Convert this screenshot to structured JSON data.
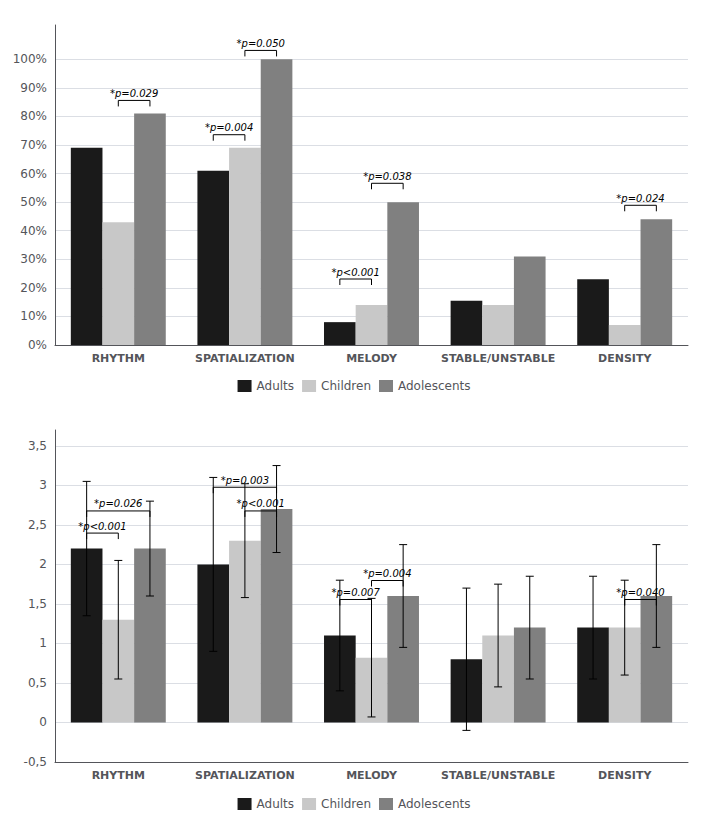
{
  "chart_data": [
    {
      "type": "bar",
      "categories": [
        "RHYTHM",
        "SPATIALIZATION",
        "MELODY",
        "STABLE/UNSTABLE",
        "DENSITY"
      ],
      "series": [
        {
          "name": "Adults",
          "color": "#1a1a1a",
          "values": [
            0.69,
            0.61,
            0.08,
            0.155,
            0.23
          ]
        },
        {
          "name": "Children",
          "color": "#c8c8c8",
          "values": [
            0.43,
            0.69,
            0.14,
            0.14,
            0.07
          ]
        },
        {
          "name": "Adolescents",
          "color": "#808080",
          "values": [
            0.81,
            1.0,
            0.5,
            0.31,
            0.44
          ]
        }
      ],
      "ylim": [
        0,
        1.12
      ],
      "yticks": [
        {
          "value": 0.0,
          "label": "0%"
        },
        {
          "value": 0.1,
          "label": "10%"
        },
        {
          "value": 0.2,
          "label": "20%"
        },
        {
          "value": 0.3,
          "label": "30%"
        },
        {
          "value": 0.4,
          "label": "40%"
        },
        {
          "value": 0.5,
          "label": "50%"
        },
        {
          "value": 0.6,
          "label": "60%"
        },
        {
          "value": 0.7,
          "label": "70%"
        },
        {
          "value": 0.8,
          "label": "80%"
        },
        {
          "value": 0.9,
          "label": "90%"
        },
        {
          "value": 1.0,
          "label": "100%"
        }
      ],
      "grid": true,
      "legend": "bottom",
      "annotations": [
        {
          "text": "*p=0.029",
          "category": "RHYTHM",
          "from": "Children",
          "to": "Adolescents",
          "y": 0.835
        },
        {
          "text": "*p=0.004",
          "category": "SPATIALIZATION",
          "from": "Adults",
          "to": "Children",
          "y": 0.715
        },
        {
          "text": "*p=0.050",
          "category": "SPATIALIZATION",
          "from": "Children",
          "to": "Adolescents",
          "y": 1.01
        },
        {
          "text": "*p<0.001",
          "category": "MELODY",
          "from": "Adults",
          "to": "Children",
          "y": 0.21
        },
        {
          "text": "*p=0.038",
          "category": "MELODY",
          "from": "Children",
          "to": "Adolescents",
          "y": 0.545
        },
        {
          "text": "*p=0.024",
          "category": "DENSITY",
          "from": "Children",
          "to": "Adolescents",
          "y": 0.468
        }
      ]
    },
    {
      "type": "bar",
      "categories": [
        "RHYTHM",
        "SPATIALIZATION",
        "MELODY",
        "STABLE/UNSTABLE",
        "DENSITY"
      ],
      "series": [
        {
          "name": "Adults",
          "color": "#1a1a1a",
          "values": [
            2.2,
            2.0,
            1.1,
            0.8,
            1.2
          ],
          "errors": [
            0.85,
            1.1,
            0.7,
            0.9,
            0.65
          ]
        },
        {
          "name": "Children",
          "color": "#c8c8c8",
          "values": [
            1.3,
            2.3,
            0.82,
            1.1,
            1.2
          ],
          "errors": [
            0.75,
            0.72,
            0.75,
            0.65,
            0.6
          ]
        },
        {
          "name": "Adolescents",
          "color": "#808080",
          "values": [
            2.2,
            2.7,
            1.6,
            1.2,
            1.6
          ],
          "errors": [
            0.6,
            0.55,
            0.65,
            0.65,
            0.65
          ]
        }
      ],
      "ylim": [
        -0.5,
        3.7
      ],
      "yticks": [
        {
          "value": -0.5,
          "label": "-0,5"
        },
        0,
        {
          "value": 0.5,
          "label": "0,5"
        },
        1,
        {
          "value": 1.5,
          "label": "1,5"
        },
        2,
        {
          "value": 2.5,
          "label": "2,5"
        },
        3,
        {
          "value": 3.5,
          "label": "3,5"
        }
      ],
      "grid": true,
      "legend": "bottom",
      "annotations": [
        {
          "text": "*p=0.026",
          "category": "RHYTHM",
          "from": "Adults",
          "to": "Adolescents",
          "y": 2.6
        },
        {
          "text": "*p<0.001",
          "category": "RHYTHM",
          "from": "Adults",
          "to": "Children",
          "y": 2.32
        },
        {
          "text": "*p=0.003",
          "category": "SPATIALIZATION",
          "from": "Adults",
          "to": "Adolescents",
          "y": 2.9
        },
        {
          "text": "*p<0.001",
          "category": "SPATIALIZATION",
          "from": "Children",
          "to": "Adolescents",
          "y": 2.6
        },
        {
          "text": "*p=0.007",
          "category": "MELODY",
          "from": "Adults",
          "to": "Children",
          "y": 1.48
        },
        {
          "text": "*p=0.004",
          "category": "MELODY",
          "from": "Children",
          "to": "Adolescents",
          "y": 1.72
        },
        {
          "text": "*p=0.040",
          "category": "DENSITY",
          "from": "Children",
          "to": "Adolescents",
          "y": 1.48
        }
      ]
    }
  ]
}
